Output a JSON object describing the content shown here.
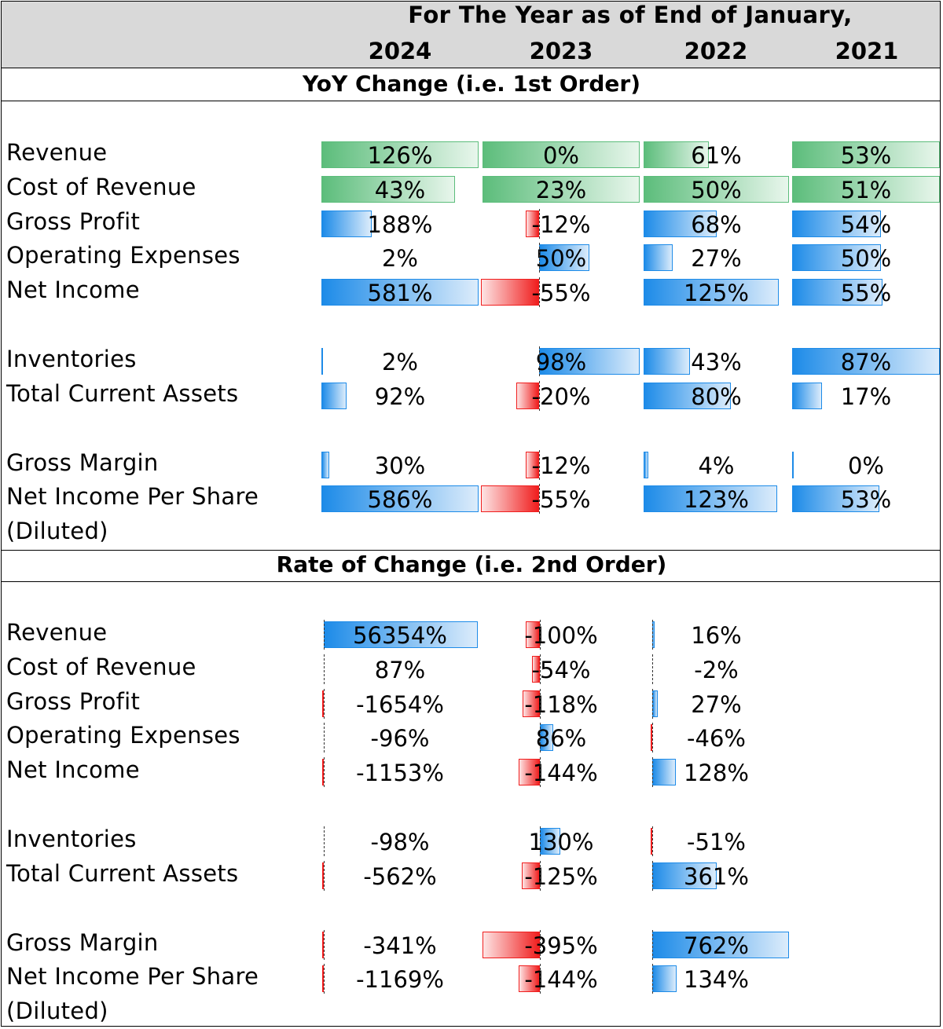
{
  "header": {
    "title": "For The Year as of End of January,",
    "years": [
      "2024",
      "2023",
      "2022",
      "2021"
    ]
  },
  "colors": {
    "header_bg": "#d9d9d9",
    "green_bar": "#5cbd7b",
    "blue_bar": "#1d8be8",
    "red_bar": "#f01e1e"
  },
  "chart_data": [
    {
      "type": "table",
      "title": "YoY Change (i.e. 1st Order)",
      "columns": [
        "2024",
        "2023",
        "2022",
        "2021"
      ],
      "rows": [
        {
          "label": "Revenue",
          "style": "green",
          "values": [
            "126%",
            "0%",
            "61%",
            "53%"
          ],
          "bars": [
            1.0,
            1.0,
            0.45,
            1.0
          ]
        },
        {
          "label": "Cost of Revenue",
          "style": "green",
          "values": [
            "43%",
            "23%",
            "50%",
            "51%"
          ],
          "bars": [
            0.85,
            1.0,
            1.0,
            1.0
          ]
        },
        {
          "label": "Gross Profit",
          "values": [
            "188%",
            "-12%",
            "68%",
            "54%"
          ],
          "bars": [
            0.32,
            -0.23,
            0.5,
            0.6
          ]
        },
        {
          "label": "Operating Expenses",
          "values": [
            "2%",
            "50%",
            "27%",
            "50%"
          ],
          "bars": [
            0,
            0.5,
            0.2,
            0.6
          ]
        },
        {
          "label": "Net Income",
          "values": [
            "581%",
            "-55%",
            "125%",
            "55%"
          ],
          "bars": [
            1.0,
            -1.0,
            0.93,
            0.61
          ]
        },
        {
          "label": "Inventories",
          "values": [
            "2%",
            "98%",
            "43%",
            "87%"
          ],
          "bars": [
            0.005,
            1.0,
            0.32,
            1.0
          ],
          "gap_before": true
        },
        {
          "label": "Total Current Assets",
          "values": [
            "92%",
            "-20%",
            "80%",
            "17%"
          ],
          "bars": [
            0.16,
            -0.39,
            0.6,
            0.2
          ]
        },
        {
          "label": "Gross Margin",
          "values": [
            "30%",
            "-12%",
            "4%",
            "0%"
          ],
          "bars": [
            0.05,
            -0.23,
            0.03,
            0.005
          ],
          "gap_before": true
        },
        {
          "label": "Net Income Per Share",
          "label2": "(Diluted)",
          "values": [
            "586%",
            "-55%",
            "123%",
            "53%"
          ],
          "bars": [
            1.0,
            -1.0,
            0.92,
            0.59
          ]
        }
      ]
    },
    {
      "type": "table",
      "title": "Rate of Change (i.e. 2nd Order)",
      "columns": [
        "2024",
        "2023",
        "2022"
      ],
      "rows": [
        {
          "label": "Revenue",
          "values": [
            "56354%",
            "-100%",
            "16%"
          ],
          "bars": [
            1.0,
            -0.25,
            0.02
          ]
        },
        {
          "label": "Cost of Revenue",
          "values": [
            "87%",
            "-54%",
            "-2%"
          ],
          "bars": [
            0,
            -0.14,
            0
          ]
        },
        {
          "label": "Gross Profit",
          "values": [
            "-1654%",
            "-118%",
            "27%"
          ],
          "bars": [
            -0.02,
            -0.3,
            0.04
          ]
        },
        {
          "label": "Operating Expenses",
          "values": [
            "-96%",
            "86%",
            "-46%"
          ],
          "bars": [
            0,
            0.22,
            -0.06
          ]
        },
        {
          "label": "Net Income",
          "values": [
            "-1153%",
            "-144%",
            "128%"
          ],
          "bars": [
            -0.02,
            -0.37,
            0.17
          ]
        },
        {
          "label": "Inventories",
          "values": [
            "-98%",
            "130%",
            "-51%"
          ],
          "bars": [
            0,
            0.33,
            -0.07
          ],
          "gap_before": true
        },
        {
          "label": "Total Current Assets",
          "values": [
            "-562%",
            "-125%",
            "361%"
          ],
          "bars": [
            -0.01,
            -0.32,
            0.47
          ]
        },
        {
          "label": "Gross Margin",
          "values": [
            "-341%",
            "-395%",
            "762%"
          ],
          "bars": [
            -0.005,
            -1.0,
            1.0
          ],
          "gap_before": true
        },
        {
          "label": "Net Income Per Share",
          "label2": "(Diluted)",
          "values": [
            "-1169%",
            "-144%",
            "134%"
          ],
          "bars": [
            -0.02,
            -0.37,
            0.18
          ]
        }
      ]
    }
  ]
}
